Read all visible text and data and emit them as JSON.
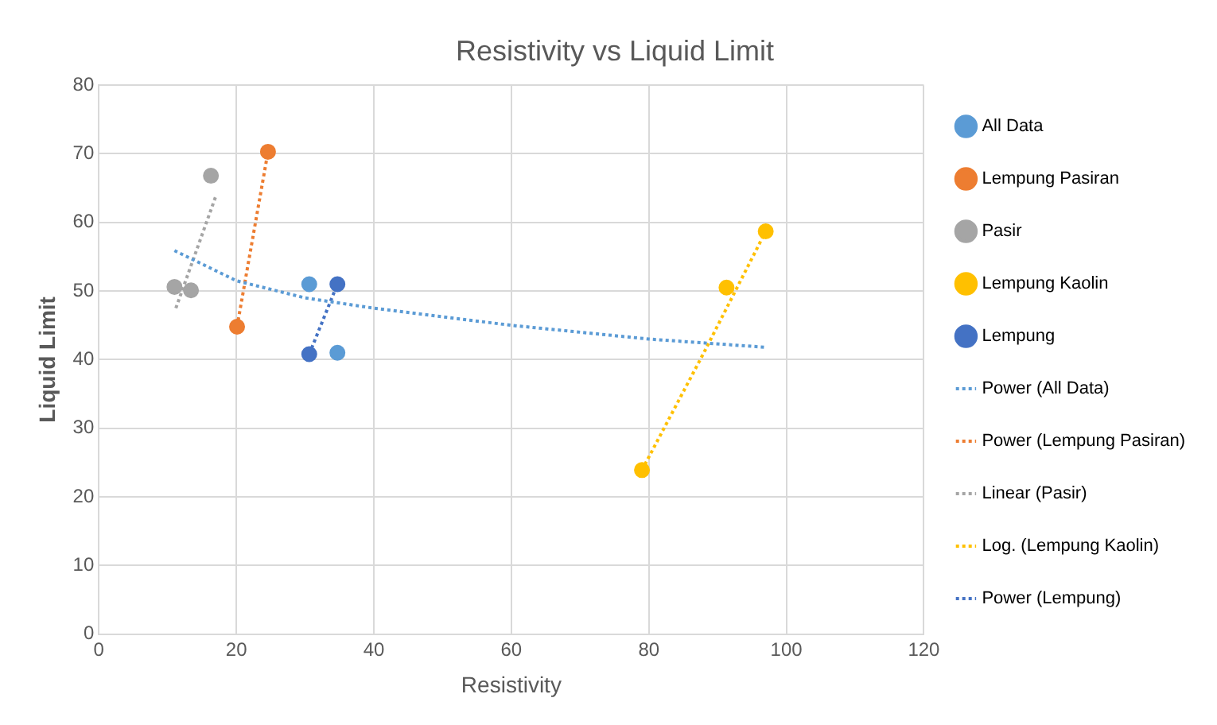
{
  "chart_data": {
    "type": "scatter",
    "title": "Resistivity vs Liquid Limit",
    "xlabel": "Resistivity",
    "ylabel": "Liquid Limit",
    "xlim": [
      0,
      120
    ],
    "xticks": [
      0,
      20,
      40,
      60,
      80,
      100,
      120
    ],
    "ylim": [
      0,
      80
    ],
    "yticks": [
      0,
      10,
      20,
      30,
      40,
      50,
      60,
      70,
      80
    ],
    "grid": true,
    "legend": "right",
    "series": [
      {
        "name": "All Data",
        "type": "scatter",
        "marker": "circle",
        "color": "#5b9bd5",
        "x": [
          30.6,
          34.7
        ],
        "values": [
          51,
          41
        ]
      },
      {
        "name": "Lempung Pasiran",
        "type": "scatter",
        "marker": "circle",
        "color": "#ed7d31",
        "x": [
          20.1,
          24.6
        ],
        "values": [
          44.8,
          70.3
        ]
      },
      {
        "name": "Pasir",
        "type": "scatter",
        "marker": "circle",
        "color": "#a5a5a5",
        "x": [
          11,
          13.4,
          16.3
        ],
        "values": [
          50.6,
          50.1,
          66.8
        ]
      },
      {
        "name": "Lempung Kaolin",
        "type": "scatter",
        "marker": "circle",
        "color": "#ffc000",
        "x": [
          79,
          91.3,
          97
        ],
        "values": [
          23.9,
          50.5,
          58.7
        ]
      },
      {
        "name": "Lempung",
        "type": "scatter",
        "marker": "circle",
        "color": "#4472c4",
        "x": [
          30.6,
          34.7
        ],
        "values": [
          40.8,
          51
        ]
      },
      {
        "name": "Power (All Data)",
        "type": "line",
        "marker": "none",
        "line_style": "dotted",
        "color": "#5b9bd5",
        "x": [
          11,
          20,
          30,
          40,
          60,
          80,
          97
        ],
        "values": [
          55.9,
          51.5,
          49,
          47.5,
          45,
          43,
          41.8
        ]
      },
      {
        "name": "Power (Lempung Pasiran)",
        "type": "line",
        "marker": "none",
        "line_style": "dotted",
        "color": "#ed7d31",
        "x": [
          20.1,
          24.6
        ],
        "values": [
          44.8,
          70.3
        ]
      },
      {
        "name": "Linear (Pasir)",
        "type": "line",
        "marker": "none",
        "line_style": "dotted",
        "color": "#a5a5a5",
        "x": [
          11.2,
          17
        ],
        "values": [
          47.5,
          63.8
        ]
      },
      {
        "name": "Log. (Lempung Kaolin)",
        "type": "line",
        "marker": "none",
        "line_style": "dotted",
        "color": "#ffc000",
        "x": [
          79,
          88,
          97
        ],
        "values": [
          23.9,
          41,
          58.7
        ]
      },
      {
        "name": "Power (Lempung)",
        "type": "line",
        "marker": "none",
        "line_style": "dotted",
        "color": "#4472c4",
        "x": [
          30.6,
          34.7
        ],
        "values": [
          40.8,
          51
        ]
      }
    ]
  }
}
